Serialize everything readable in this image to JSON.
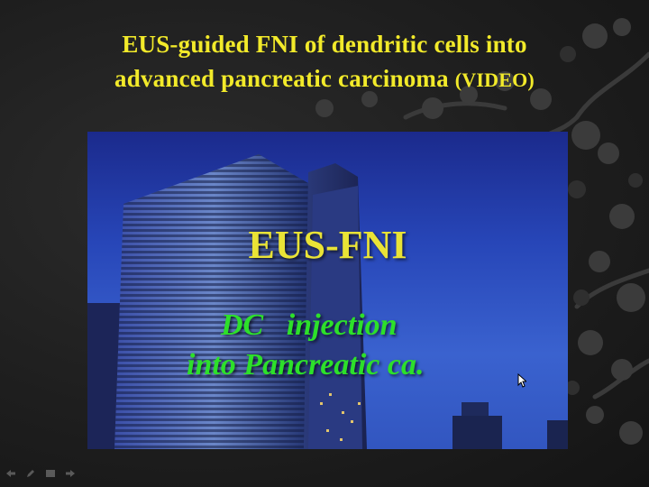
{
  "slide": {
    "title_line1": "EUS-guided FNI of dendritic cells into",
    "title_line2": "advanced pancreatic carcinoma",
    "title_tag": "(VIDEO)"
  },
  "video": {
    "heading": "EUS-FNI",
    "line1": "DC   injection",
    "line2": "into Pancreatic ca."
  },
  "controls": {
    "icons": [
      "arrow-left-icon",
      "pen-icon",
      "menu-icon",
      "arrow-right-icon"
    ]
  },
  "colors": {
    "title": "#f2ea2a",
    "video_heading": "#e9e336",
    "video_text": "#2de02a",
    "background": "#1d1d1d"
  }
}
